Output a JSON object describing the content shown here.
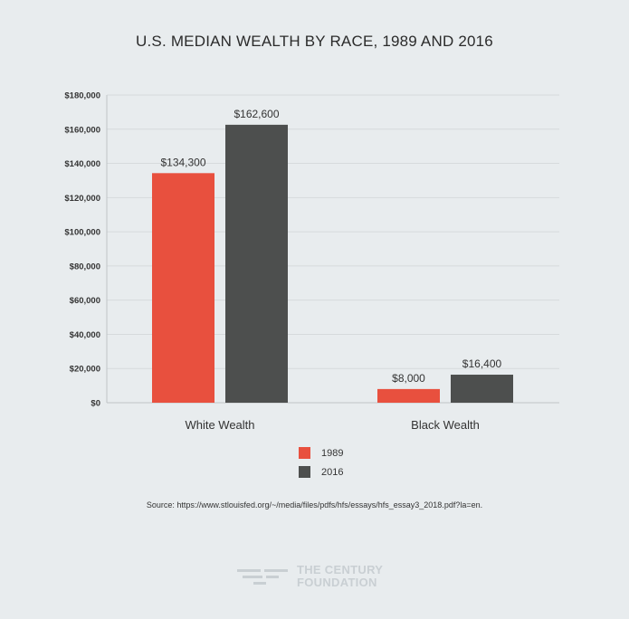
{
  "chart_data": {
    "type": "bar",
    "title": "U.S. MEDIAN WEALTH BY RACE, 1989 AND 2016",
    "categories": [
      "White Wealth",
      "Black Wealth"
    ],
    "series": [
      {
        "name": "1989",
        "color": "#e8503e",
        "values": [
          134300,
          8000
        ],
        "labels": [
          "$134,300",
          "$8,000"
        ]
      },
      {
        "name": "2016",
        "color": "#4d4f4e",
        "values": [
          162600,
          16400
        ],
        "labels": [
          "$162,600",
          "$16,400"
        ]
      }
    ],
    "yticks": [
      {
        "value": 0,
        "label": "$0"
      },
      {
        "value": 20000,
        "label": "$20,000"
      },
      {
        "value": 40000,
        "label": "$40,000"
      },
      {
        "value": 60000,
        "label": "$60,000"
      },
      {
        "value": 80000,
        "label": "$80,000"
      },
      {
        "value": 100000,
        "label": "$100,000"
      },
      {
        "value": 120000,
        "label": "$120,000"
      },
      {
        "value": 140000,
        "label": "$140,000"
      },
      {
        "value": 160000,
        "label": "$160,000"
      },
      {
        "value": 180000,
        "label": "$180,000"
      }
    ],
    "ylim": [
      0,
      180000
    ],
    "xlabel": "",
    "ylabel": "",
    "grid": true,
    "legend_position": "bottom-center"
  },
  "source": "Source: https://www.stlouisfed.org/~/media/files/pdfs/hfs/essays/hfs_essay3_2018.pdf?la=en.",
  "logo": {
    "line1": "THE CENTURY",
    "line2": "FOUNDATION",
    "color": "#c9cfd3"
  }
}
